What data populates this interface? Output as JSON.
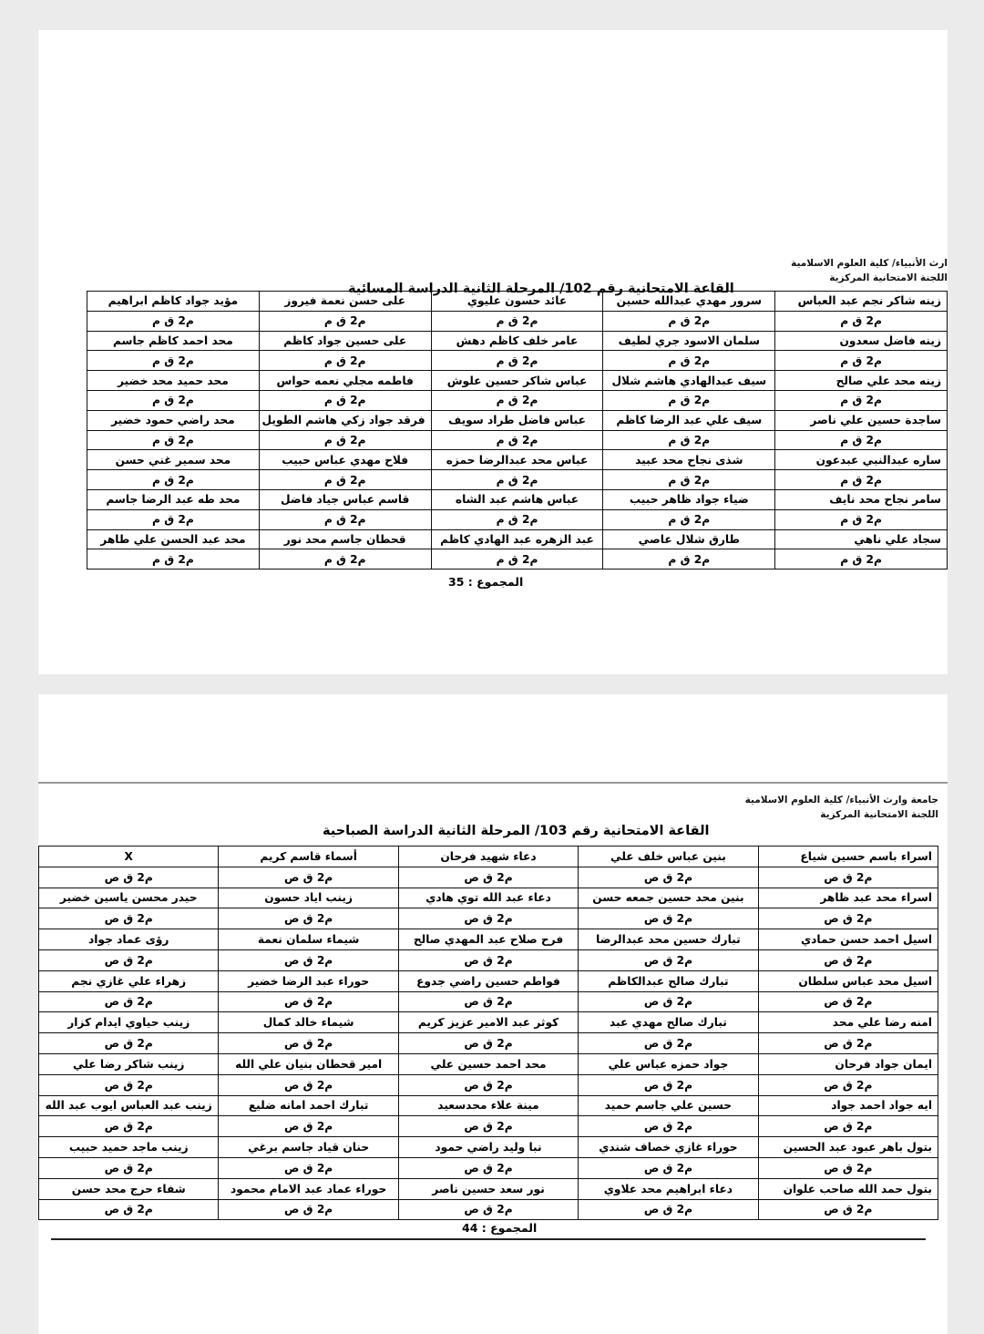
{
  "page1": {
    "university": "ارث الأنبياء/ كلية العلوم الاسلامية",
    "committee": "اللجنة الامتحانية المركزية",
    "title": "القاعة الامتحانية رقم 102/ المرحلة الثانية الدراسة المسائية",
    "code": "م2 ق م",
    "total": "المجموع : 35",
    "rows": [
      [
        "زينه شاكر نجم عبد العباس",
        "سرور مهدي عبدالله حسين",
        "عائد حسون عليوي",
        "على حسن نعمة فيروز",
        "مؤيد جواد كاظم ابراهيم"
      ],
      [
        "زينه فاضل سعدون",
        "سلمان الاسود جري لطيف",
        "عامر خلف كاظم دهش",
        "على حسين جواد كاظم",
        "محد احمد كاظم جاسم"
      ],
      [
        "زينه محد علي صالح",
        "سيف عبدالهادي هاشم شلال",
        "عباس شاكر حسين علوش",
        "فاطمه مجلي نعمه حواس",
        "محد حميد محد خضير"
      ],
      [
        "ساجدة حسين علي ناصر",
        "سيف علي عبد الرضا كاظم",
        "عباس فاضل طراد سويف",
        "فرقد جواد زكي هاشم الطويل",
        "محد راضي حمود خضير"
      ],
      [
        "ساره عبدالنبي عبدعون",
        "شذى نجاح محد عبيد",
        "عباس محد عبدالرضا حمزه",
        "فلاح مهدي عباس حبيب",
        "محد سمير غني حسن"
      ],
      [
        "سامر نجاح محد نايف",
        "ضياء جواد ظاهر حبيب",
        "عباس هاشم عبد الشاه",
        "قاسم عباس جياد فاضل",
        "محد طه عبد الرضا جاسم"
      ],
      [
        "سجاد علي ناهي",
        "طارق شلال عاصي",
        "عبد الزهره عبد الهادي كاظم",
        "قحطان جاسم محد نور",
        "محد عبد الحسن علي طاهر"
      ]
    ]
  },
  "page2": {
    "university": "جامعة وارث الأنبياء/ كلية العلوم الاسلامية",
    "committee": "اللجنة الامتحانية المركزية",
    "title": "القاعة الامتحانية رقم 103/ المرحلة الثانية الدراسة الصباحية",
    "code": "م2 ق ص",
    "total": "المجموع : 44",
    "rows": [
      [
        "اسراء باسم حسين شياع",
        "بنين عباس خلف علي",
        "دعاء شهيد فرحان",
        "أسماء قاسم كريم",
        "X"
      ],
      [
        "اسراء محد عبد ظاهر",
        "بنين محد حسين جمعه حسن",
        "دعاء عبد الله توي هادي",
        "زينب اياد حسون",
        "حيدر محسن ياسين خضير"
      ],
      [
        "اسيل احمد حسن حمادي",
        "تبارك حسين محد عبدالرضا",
        "فرح صلاح عبد المهدي صالح",
        "شيماء سلمان نعمة",
        "رؤى عماد جواد"
      ],
      [
        "اسيل محد عباس سلطان",
        "تبارك صالح عبدالكاظم",
        "فواطم حسين راضي جدوع",
        "حوراء عبد الرضا خضير",
        "زهراء علي غازي نجم"
      ],
      [
        "امنه رضا علي محد",
        "تبارك صالح مهدي عبد",
        "كوثر عبد الامير عزيز كريم",
        "شيماء خالد كمال",
        "زينب حياوي ايدام كزار"
      ],
      [
        "ايمان جواد فرحان",
        "جواد حمزه عباس علي",
        "محد احمد حسين علي",
        "امير قحطان بنيان علي الله",
        "زينب شاكر رضا علي"
      ],
      [
        "ايه جواد احمد جواد",
        "حسين علي جاسم حميد",
        "مينة علاء محدسعيد",
        "تبارك احمد امانه ضليع",
        "زينب عبد العباس ايوب عبد الله"
      ],
      [
        "بتول باهر عبود عبد الحسين",
        "حوراء غازي خصاف شندي",
        "نبا وليد راضي حمود",
        "حنان قياد جاسم برغي",
        "زينب ماجد حميد حبيب"
      ],
      [
        "بتول حمد الله صاحب علوان",
        "دعاء ابراهيم محد علاوي",
        "نور سعد حسين ناصر",
        "حوراء عماد عبد الامام محمود",
        "شفاء حرج محد حسن"
      ]
    ]
  }
}
